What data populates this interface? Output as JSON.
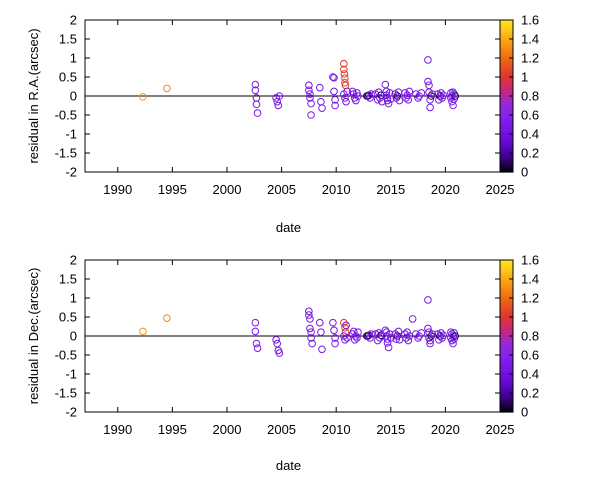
{
  "chart_data": [
    {
      "type": "scatter",
      "xlabel": "date",
      "ylabel": "residual in R.A.(arcsec)",
      "xlim": [
        1987,
        2025
      ],
      "ylim": [
        -2,
        2
      ],
      "xticks": [
        1990,
        1995,
        2000,
        2005,
        2010,
        2015,
        2020,
        2025
      ],
      "yticks": [
        -2,
        -1.5,
        -1,
        -0.5,
        0,
        0.5,
        1,
        1.5,
        2
      ],
      "colorbar": {
        "range": [
          0,
          1.6
        ],
        "ticks": [
          0,
          0.2,
          0.4,
          0.6,
          0.8,
          1,
          1.2,
          1.4,
          1.6
        ]
      },
      "marker": "open-circle",
      "zero_line": true,
      "points": [
        [
          1992.3,
          -0.02,
          1.35
        ],
        [
          1994.5,
          0.2,
          1.3
        ],
        [
          2002.6,
          0.3,
          0.5
        ],
        [
          2002.6,
          0.15,
          0.5
        ],
        [
          2002.7,
          -0.05,
          0.45
        ],
        [
          2002.7,
          -0.22,
          0.5
        ],
        [
          2002.8,
          -0.45,
          0.5
        ],
        [
          2004.5,
          -0.05,
          0.5
        ],
        [
          2004.6,
          -0.15,
          0.5
        ],
        [
          2004.7,
          -0.25,
          0.45
        ],
        [
          2004.8,
          0.0,
          0.5
        ],
        [
          2007.5,
          0.28,
          0.45
        ],
        [
          2007.5,
          0.15,
          0.5
        ],
        [
          2007.6,
          0.05,
          0.5
        ],
        [
          2007.6,
          -0.05,
          0.45
        ],
        [
          2007.7,
          -0.2,
          0.5
        ],
        [
          2007.7,
          -0.5,
          0.5
        ],
        [
          2008.5,
          0.22,
          0.45
        ],
        [
          2008.6,
          -0.15,
          0.5
        ],
        [
          2008.7,
          -0.32,
          0.5
        ],
        [
          2009.7,
          0.5,
          0.5
        ],
        [
          2009.8,
          0.48,
          0.5
        ],
        [
          2009.8,
          0.12,
          0.45
        ],
        [
          2009.9,
          -0.1,
          0.5
        ],
        [
          2009.9,
          -0.25,
          0.5
        ],
        [
          2010.7,
          0.85,
          1.0
        ],
        [
          2010.7,
          0.7,
          1.05
        ],
        [
          2010.75,
          0.58,
          1.0
        ],
        [
          2010.8,
          0.47,
          1.05
        ],
        [
          2010.8,
          0.35,
          1.1
        ],
        [
          2010.85,
          0.28,
          1.0
        ],
        [
          2010.7,
          0.05,
          0.45
        ],
        [
          2010.8,
          -0.05,
          0.5
        ],
        [
          2010.9,
          -0.15,
          0.45
        ],
        [
          2011.0,
          0.12,
          0.5
        ],
        [
          2011.5,
          0.12,
          0.5
        ],
        [
          2011.6,
          0.05,
          0.45
        ],
        [
          2011.7,
          -0.05,
          0.5
        ],
        [
          2011.8,
          -0.12,
          0.45
        ],
        [
          2011.9,
          0.08,
          0.5
        ],
        [
          2012.0,
          0.0,
          0.45
        ],
        [
          2012.8,
          0.0,
          0.1
        ],
        [
          2012.9,
          0.0,
          0.08
        ],
        [
          2013.0,
          0.02,
          0.12
        ],
        [
          2013.1,
          -0.05,
          0.45
        ],
        [
          2013.2,
          0.05,
          0.5
        ],
        [
          2013.6,
          0.05,
          0.45
        ],
        [
          2013.8,
          -0.1,
          0.5
        ],
        [
          2013.9,
          0.1,
          0.45
        ],
        [
          2014.0,
          -0.05,
          0.5
        ],
        [
          2014.1,
          0.02,
          0.1
        ],
        [
          2014.2,
          -0.15,
          0.45
        ],
        [
          2014.5,
          0.3,
          0.45
        ],
        [
          2014.6,
          0.12,
          0.5
        ],
        [
          2014.6,
          0.02,
          0.45
        ],
        [
          2014.7,
          -0.05,
          0.5
        ],
        [
          2014.7,
          -0.12,
          0.45
        ],
        [
          2014.8,
          -0.2,
          0.5
        ],
        [
          2014.9,
          0.08,
          0.45
        ],
        [
          2015.0,
          -0.08,
          0.5
        ],
        [
          2015.4,
          0.05,
          0.45
        ],
        [
          2015.5,
          -0.05,
          0.5
        ],
        [
          2015.6,
          0.0,
          0.1
        ],
        [
          2015.7,
          0.1,
          0.45
        ],
        [
          2015.8,
          -0.12,
          0.5
        ],
        [
          2016.3,
          0.08,
          0.45
        ],
        [
          2016.4,
          -0.05,
          0.5
        ],
        [
          2016.5,
          0.02,
          0.45
        ],
        [
          2016.6,
          -0.1,
          0.5
        ],
        [
          2016.7,
          0.12,
          0.45
        ],
        [
          2017.3,
          0.05,
          0.45
        ],
        [
          2017.5,
          -0.05,
          0.5
        ],
        [
          2017.6,
          0.0,
          0.45
        ],
        [
          2017.8,
          0.08,
          0.5
        ],
        [
          2018.4,
          0.95,
          0.5
        ],
        [
          2018.4,
          0.38,
          0.45
        ],
        [
          2018.5,
          0.28,
          0.5
        ],
        [
          2018.5,
          0.1,
          0.45
        ],
        [
          2018.6,
          -0.1,
          0.5
        ],
        [
          2018.6,
          -0.3,
          0.45
        ],
        [
          2018.7,
          0.0,
          0.1
        ],
        [
          2018.8,
          0.05,
          0.45
        ],
        [
          2019.3,
          0.05,
          0.45
        ],
        [
          2019.4,
          -0.1,
          0.5
        ],
        [
          2019.5,
          0.0,
          0.1
        ],
        [
          2019.6,
          0.08,
          0.45
        ],
        [
          2019.7,
          -0.05,
          0.5
        ],
        [
          2019.8,
          0.02,
          0.45
        ],
        [
          2020.5,
          0.08,
          0.45
        ],
        [
          2020.5,
          -0.05,
          0.5
        ],
        [
          2020.6,
          0.0,
          0.45
        ],
        [
          2020.6,
          -0.15,
          0.5
        ],
        [
          2020.7,
          0.1,
          0.45
        ],
        [
          2020.7,
          -0.25,
          0.5
        ],
        [
          2020.8,
          0.05,
          0.45
        ],
        [
          2020.8,
          -0.08,
          0.5
        ],
        [
          2020.9,
          0.0,
          0.1
        ]
      ]
    },
    {
      "type": "scatter",
      "xlabel": "date",
      "ylabel": "residual in Dec.(arcsec)",
      "xlim": [
        1987,
        2025
      ],
      "ylim": [
        -2,
        2
      ],
      "xticks": [
        1990,
        1995,
        2000,
        2005,
        2010,
        2015,
        2020,
        2025
      ],
      "yticks": [
        -2,
        -1.5,
        -1,
        -0.5,
        0,
        0.5,
        1,
        1.5,
        2
      ],
      "colorbar": {
        "range": [
          0,
          1.6
        ],
        "ticks": [
          0,
          0.2,
          0.4,
          0.6,
          0.8,
          1,
          1.2,
          1.4,
          1.6
        ]
      },
      "marker": "open-circle",
      "zero_line": true,
      "points": [
        [
          1992.3,
          0.12,
          1.35
        ],
        [
          1994.5,
          0.47,
          1.3
        ],
        [
          2002.6,
          0.35,
          0.5
        ],
        [
          2002.6,
          0.12,
          0.45
        ],
        [
          2002.7,
          -0.2,
          0.5
        ],
        [
          2002.8,
          -0.32,
          0.5
        ],
        [
          2004.5,
          -0.1,
          0.5
        ],
        [
          2004.6,
          -0.2,
          0.5
        ],
        [
          2004.7,
          -0.38,
          0.45
        ],
        [
          2004.8,
          -0.45,
          0.5
        ],
        [
          2007.5,
          0.65,
          0.45
        ],
        [
          2007.5,
          0.55,
          0.5
        ],
        [
          2007.6,
          0.45,
          0.5
        ],
        [
          2007.6,
          0.2,
          0.45
        ],
        [
          2007.7,
          0.1,
          0.5
        ],
        [
          2007.7,
          -0.05,
          0.5
        ],
        [
          2007.8,
          -0.2,
          0.45
        ],
        [
          2008.5,
          0.35,
          0.45
        ],
        [
          2008.6,
          0.1,
          0.5
        ],
        [
          2008.7,
          -0.35,
          0.5
        ],
        [
          2009.7,
          0.35,
          0.5
        ],
        [
          2009.8,
          0.15,
          0.45
        ],
        [
          2009.9,
          -0.05,
          0.5
        ],
        [
          2009.9,
          -0.2,
          0.5
        ],
        [
          2010.7,
          0.35,
          1.05
        ],
        [
          2010.8,
          0.22,
          1.1
        ],
        [
          2010.85,
          0.1,
          1.0
        ],
        [
          2010.7,
          0.0,
          0.45
        ],
        [
          2010.8,
          -0.1,
          0.5
        ],
        [
          2010.9,
          0.28,
          0.45
        ],
        [
          2011.0,
          -0.05,
          0.5
        ],
        [
          2011.5,
          0.05,
          0.45
        ],
        [
          2011.6,
          0.12,
          0.5
        ],
        [
          2011.7,
          -0.1,
          0.5
        ],
        [
          2011.8,
          0.0,
          0.45
        ],
        [
          2011.9,
          -0.05,
          0.5
        ],
        [
          2012.0,
          0.1,
          0.45
        ],
        [
          2012.8,
          0.0,
          0.1
        ],
        [
          2012.9,
          0.0,
          0.08
        ],
        [
          2013.0,
          0.02,
          0.12
        ],
        [
          2013.1,
          -0.05,
          0.45
        ],
        [
          2013.2,
          0.05,
          0.5
        ],
        [
          2013.6,
          0.05,
          0.45
        ],
        [
          2013.8,
          -0.12,
          0.5
        ],
        [
          2013.9,
          0.08,
          0.45
        ],
        [
          2014.0,
          -0.05,
          0.5
        ],
        [
          2014.1,
          0.02,
          0.1
        ],
        [
          2014.2,
          0.0,
          0.45
        ],
        [
          2014.5,
          0.15,
          0.45
        ],
        [
          2014.6,
          0.1,
          0.5
        ],
        [
          2014.6,
          0.0,
          0.45
        ],
        [
          2014.7,
          -0.08,
          0.5
        ],
        [
          2014.7,
          -0.18,
          0.45
        ],
        [
          2014.8,
          -0.3,
          0.5
        ],
        [
          2014.9,
          0.05,
          0.45
        ],
        [
          2015.0,
          -0.05,
          0.5
        ],
        [
          2015.4,
          0.05,
          0.45
        ],
        [
          2015.5,
          -0.08,
          0.5
        ],
        [
          2015.6,
          0.0,
          0.1
        ],
        [
          2015.7,
          0.12,
          0.45
        ],
        [
          2015.8,
          -0.1,
          0.5
        ],
        [
          2016.3,
          0.05,
          0.45
        ],
        [
          2016.4,
          -0.05,
          0.5
        ],
        [
          2016.5,
          0.1,
          0.45
        ],
        [
          2016.6,
          -0.12,
          0.5
        ],
        [
          2016.7,
          0.0,
          0.45
        ],
        [
          2017.0,
          0.45,
          0.5
        ],
        [
          2017.3,
          0.05,
          0.45
        ],
        [
          2017.5,
          -0.05,
          0.5
        ],
        [
          2017.6,
          0.0,
          0.45
        ],
        [
          2017.8,
          0.08,
          0.5
        ],
        [
          2018.4,
          0.95,
          0.5
        ],
        [
          2018.4,
          0.2,
          0.45
        ],
        [
          2018.5,
          0.1,
          0.5
        ],
        [
          2018.5,
          -0.05,
          0.45
        ],
        [
          2018.6,
          -0.12,
          0.5
        ],
        [
          2018.6,
          -0.2,
          0.45
        ],
        [
          2018.7,
          0.0,
          0.1
        ],
        [
          2018.8,
          0.05,
          0.45
        ],
        [
          2019.3,
          0.05,
          0.45
        ],
        [
          2019.4,
          -0.1,
          0.5
        ],
        [
          2019.5,
          0.0,
          0.1
        ],
        [
          2019.6,
          0.08,
          0.45
        ],
        [
          2019.7,
          -0.05,
          0.5
        ],
        [
          2019.8,
          0.02,
          0.45
        ],
        [
          2020.5,
          0.1,
          0.45
        ],
        [
          2020.5,
          -0.05,
          0.5
        ],
        [
          2020.6,
          0.05,
          0.45
        ],
        [
          2020.6,
          -0.12,
          0.5
        ],
        [
          2020.7,
          0.0,
          0.45
        ],
        [
          2020.7,
          -0.2,
          0.5
        ],
        [
          2020.8,
          0.08,
          0.45
        ],
        [
          2020.8,
          -0.08,
          0.5
        ],
        [
          2020.9,
          0.0,
          0.1
        ]
      ]
    }
  ]
}
